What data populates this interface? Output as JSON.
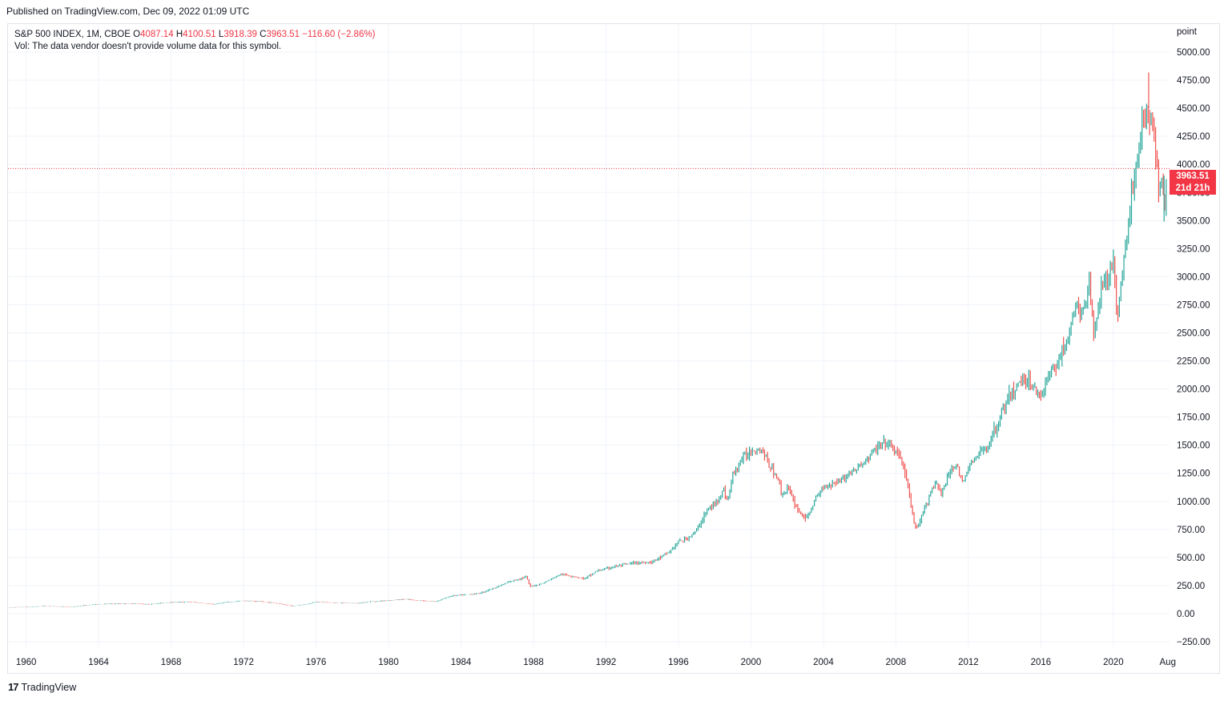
{
  "header": {
    "published": "Published on TradingView.com, Dec 09, 2022 01:09 UTC"
  },
  "legend": {
    "symbol": "S&P 500 INDEX, 1M, CBOE",
    "o_label": "O",
    "o_value": "4087.14",
    "h_label": "H",
    "h_value": "4100.51",
    "l_label": "L",
    "l_value": "3918.39",
    "c_label": "C",
    "c_value": "3963.51",
    "change": "−116.60 (−2.86%)",
    "volume_note": "Vol: The data vendor doesn't provide volume data for this symbol."
  },
  "price_axis": {
    "unit": "point"
  },
  "price_tag": {
    "price": "3963.51",
    "countdown": "21d 21h"
  },
  "footer": {
    "brand": "TradingView",
    "logo_icon": "tradingview-logo-icon"
  },
  "colors": {
    "up": "#26a69a",
    "down": "#ef5350",
    "last_price": "#f23645",
    "grid": "#f0f3fa"
  },
  "chart_data": {
    "type": "line",
    "series_style": "ohlc-bars",
    "grid": true,
    "last_price_line": 3963.51,
    "ylim": [
      -300,
      5250
    ],
    "yticks": [
      -250,
      0,
      250,
      500,
      750,
      1000,
      1250,
      1500,
      1750,
      2000,
      2250,
      2500,
      2750,
      3000,
      3250,
      3500,
      3750,
      4000,
      4250,
      4500,
      4750,
      5000
    ],
    "ytick_labels": [
      "−250.00",
      "0.00",
      "250.00",
      "500.00",
      "750.00",
      "1000.00",
      "1250.00",
      "1500.00",
      "1750.00",
      "2000.00",
      "2250.00",
      "2500.00",
      "2750.00",
      "3000.00",
      "3250.00",
      "3500.00",
      "3750.00",
      "4000.00",
      "4250.00",
      "4500.00",
      "4750.00",
      "5000.00"
    ],
    "xlim": [
      1959,
      2023.1
    ],
    "xticks": [
      1960,
      1964,
      1968,
      1972,
      1976,
      1980,
      1984,
      1988,
      1992,
      1996,
      2000,
      2004,
      2008,
      2012,
      2016,
      2020,
      2023
    ],
    "xtick_labels": [
      "1960",
      "1964",
      "1968",
      "1972",
      "1976",
      "1980",
      "1984",
      "1988",
      "1992",
      "1996",
      "2000",
      "2004",
      "2008",
      "2012",
      "2016",
      "2020",
      "Aug"
    ],
    "x": [
      1959.0,
      1960.0,
      1961.0,
      1962.0,
      1962.5,
      1963.0,
      1964.0,
      1965.0,
      1966.0,
      1966.8,
      1967.5,
      1968.0,
      1968.9,
      1969.5,
      1970.3,
      1971.0,
      1972.0,
      1973.0,
      1973.7,
      1974.4,
      1974.75,
      1975.5,
      1976.0,
      1977.0,
      1978.2,
      1979.0,
      1980.2,
      1980.9,
      1981.5,
      1982.6,
      1983.5,
      1984.0,
      1985.0,
      1986.0,
      1986.8,
      1987.6,
      1987.8,
      1988.5,
      1989.5,
      1990.3,
      1990.8,
      1991.5,
      1992.5,
      1993.5,
      1994.5,
      1995.0,
      1995.5,
      1996.0,
      1996.5,
      1997.0,
      1997.5,
      1998.0,
      1998.5,
      1998.7,
      1999.0,
      1999.5,
      2000.0,
      2000.3,
      2000.7,
      2001.0,
      2001.5,
      2001.7,
      2002.0,
      2002.5,
      2002.8,
      2003.1,
      2003.5,
      2004.0,
      2005.0,
      2006.0,
      2007.0,
      2007.4,
      2007.8,
      2008.3,
      2008.7,
      2009.0,
      2009.2,
      2009.5,
      2010.0,
      2010.3,
      2010.5,
      2011.0,
      2011.3,
      2011.7,
      2012.0,
      2012.5,
      2013.0,
      2013.5,
      2014.0,
      2014.5,
      2015.0,
      2015.3,
      2015.6,
      2016.0,
      2016.5,
      2017.0,
      2017.5,
      2018.0,
      2018.2,
      2018.7,
      2018.9,
      2019.3,
      2019.7,
      2020.0,
      2020.2,
      2020.4,
      2020.7,
      2021.0,
      2021.5,
      2021.9,
      2022.2,
      2022.5,
      2022.7,
      2022.8,
      2022.95
    ],
    "values": [
      55,
      58,
      68,
      62,
      58,
      70,
      84,
      88,
      90,
      82,
      95,
      100,
      104,
      98,
      82,
      100,
      115,
      108,
      95,
      75,
      68,
      85,
      105,
      96,
      92,
      106,
      120,
      128,
      118,
      108,
      160,
      165,
      180,
      240,
      290,
      330,
      240,
      270,
      350,
      330,
      310,
      380,
      420,
      450,
      460,
      500,
      550,
      640,
      670,
      740,
      900,
      980,
      1100,
      1000,
      1230,
      1380,
      1450,
      1470,
      1440,
      1320,
      1200,
      1050,
      1130,
      950,
      880,
      850,
      1000,
      1130,
      1200,
      1310,
      1480,
      1520,
      1480,
      1380,
      1100,
      800,
      750,
      900,
      1120,
      1180,
      1050,
      1280,
      1340,
      1150,
      1310,
      1400,
      1480,
      1650,
      1850,
      1980,
      2100,
      2080,
      2000,
      1940,
      2140,
      2270,
      2450,
      2780,
      2640,
      2900,
      2500,
      2900,
      2950,
      3200,
      2560,
      2950,
      3300,
      3700,
      4300,
      4500,
      4300,
      3800,
      3900,
      3600,
      3963.51
    ],
    "recent_high": 4818,
    "recent_low": 3491
  }
}
